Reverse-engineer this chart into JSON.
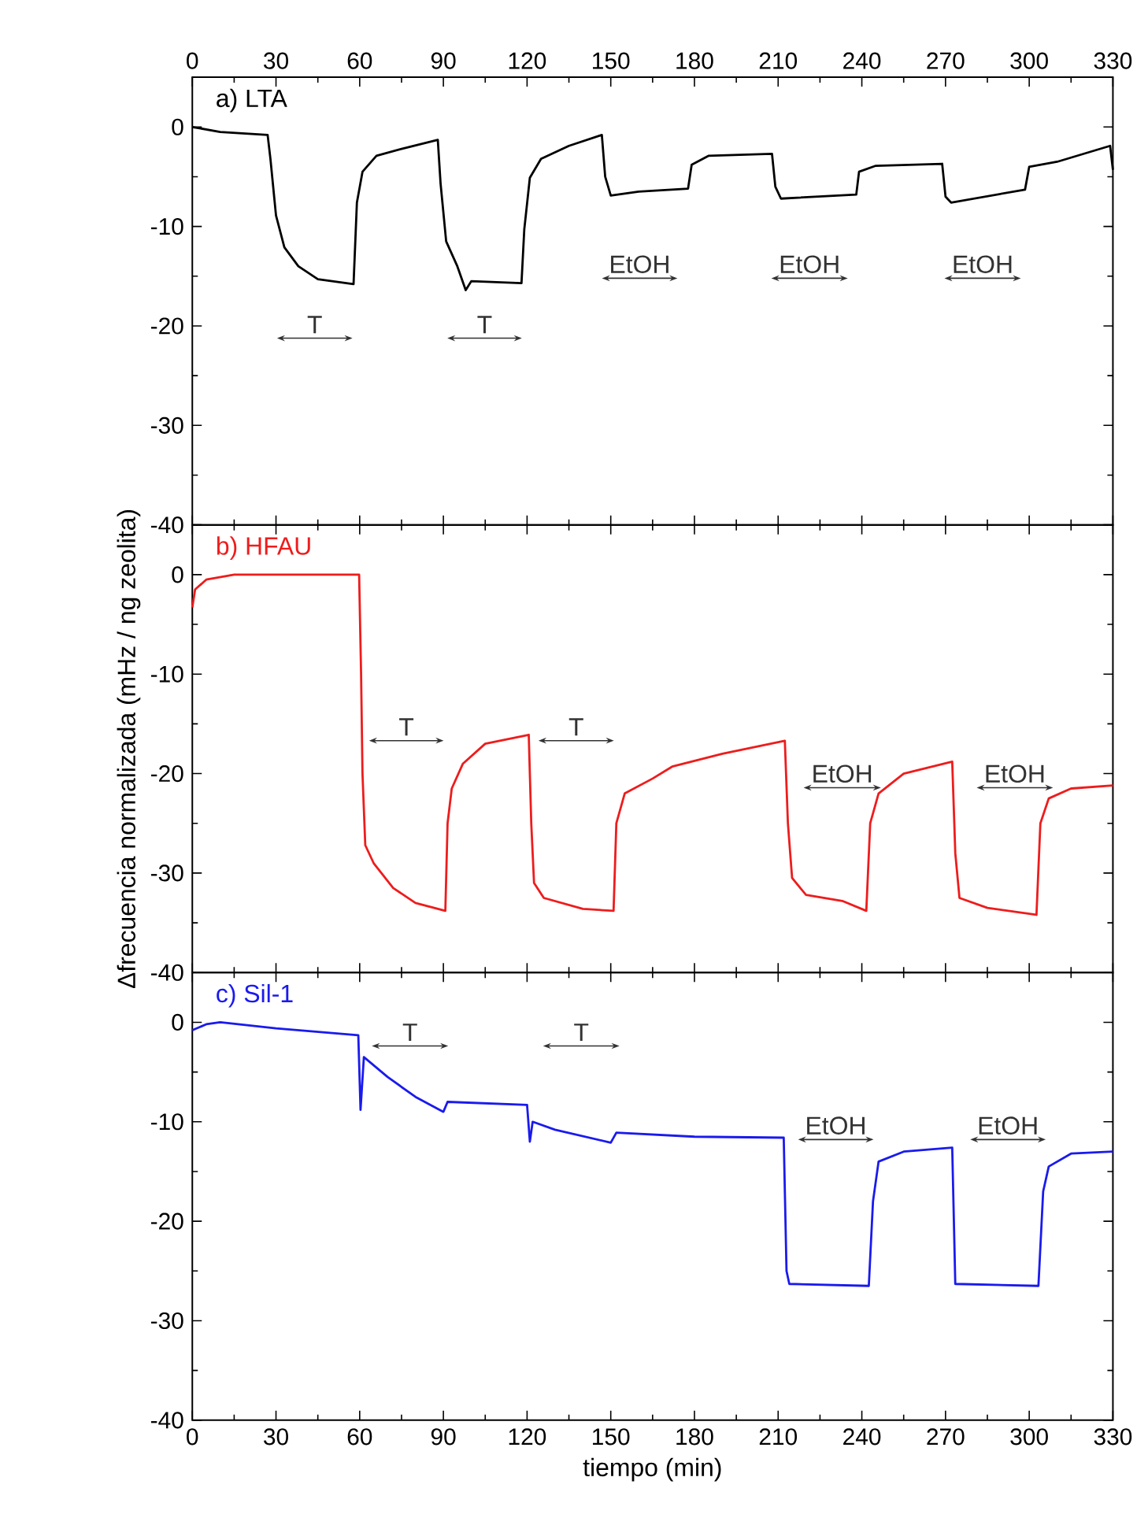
{
  "chart_data": [
    {
      "type": "line",
      "title": "a) LTA",
      "xlim": [
        0,
        330
      ],
      "xticks": [
        0,
        30,
        60,
        90,
        120,
        150,
        180,
        210,
        240,
        270,
        300,
        330
      ],
      "x2lim": [
        0,
        330
      ],
      "x2ticks": [
        0,
        30,
        60,
        90,
        120,
        150,
        180,
        210,
        240,
        270,
        300,
        330
      ],
      "ylim": [
        -40,
        5
      ],
      "yticks": [
        0,
        -10,
        -20,
        -30,
        -40
      ],
      "tick_labels": "y",
      "series": [
        {
          "color": "#000000",
          "x": [
            0,
            10,
            27,
            28,
            30,
            33,
            38,
            45,
            57.8,
            59,
            61,
            66,
            75,
            88,
            89,
            91,
            95,
            98,
            100,
            118,
            119,
            121,
            125,
            135,
            146.8,
            148,
            150,
            160,
            177.7,
            179,
            185,
            207.8,
            209,
            211,
            238,
            239,
            245,
            268.8,
            270,
            272,
            298.5,
            300,
            310,
            329,
            330
          ],
          "values": [
            0,
            -0.5,
            -0.8,
            -3.2,
            -8.9,
            -12.1,
            -14,
            -15.3,
            -15.8,
            -7.6,
            -4.5,
            -2.9,
            -2.2,
            -1.3,
            -5.7,
            -11.5,
            -14,
            -16.4,
            -15.5,
            -15.7,
            -10.3,
            -5.1,
            -3.2,
            -1.9,
            -0.8,
            -5,
            -6.9,
            -6.5,
            -6.2,
            -3.8,
            -2.9,
            -2.7,
            -6,
            -7.2,
            -6.8,
            -4.5,
            -3.9,
            -3.7,
            -7,
            -7.6,
            -6.3,
            -4,
            -3.5,
            -1.9,
            -4.3
          ]
        }
      ],
      "annotations": [
        "T",
        "T",
        "EtOH",
        "EtOH",
        "EtOH"
      ]
    },
    {
      "type": "line",
      "title": "b) HFAU",
      "ylabel": "Δfrecuencia normalizada (mHz / ng zeolita)",
      "xlim": [
        0,
        330
      ],
      "xticks": [
        0,
        30,
        60,
        90,
        120,
        150,
        180,
        210,
        240,
        270,
        300,
        330
      ],
      "ylim": [
        -40,
        5
      ],
      "yticks": [
        0,
        -10,
        -20,
        -30,
        -40
      ],
      "tick_labels": "y",
      "series": [
        {
          "color": "#ee1c1c",
          "x": [
            0,
            1,
            5,
            15,
            59.8,
            60.5,
            61,
            62,
            65,
            72,
            80,
            90.7,
            91.5,
            93,
            97,
            105,
            120.6,
            121.5,
            122.5,
            126,
            140,
            151,
            152,
            155,
            165,
            172,
            190,
            212.4,
            213.5,
            215,
            220,
            233,
            241.6,
            243,
            246,
            255,
            272.4,
            273.5,
            275,
            285,
            302.6,
            304,
            307,
            315,
            330
          ],
          "values": [
            -3.3,
            -1.5,
            -0.5,
            0,
            0,
            -10,
            -20,
            -27.2,
            -29,
            -31.5,
            -33,
            -33.8,
            -25,
            -21.5,
            -19,
            -17,
            -16.1,
            -25,
            -31,
            -32.5,
            -33.6,
            -33.8,
            -25,
            -22,
            -20.5,
            -19.3,
            -18,
            -16.7,
            -25,
            -30.5,
            -32.2,
            -32.8,
            -33.8,
            -25,
            -22,
            -20,
            -18.8,
            -28,
            -32.5,
            -33.5,
            -34.2,
            -25,
            -22.5,
            -21.5,
            -21.2
          ]
        }
      ],
      "annotations": [
        "T",
        "T",
        "EtOH",
        "EtOH"
      ]
    },
    {
      "type": "line",
      "title": "c) Sil-1",
      "xlabel": "tiempo (min)",
      "xlim": [
        0,
        330
      ],
      "xticks": [
        0,
        30,
        60,
        90,
        120,
        150,
        180,
        210,
        240,
        270,
        300,
        330
      ],
      "ylim": [
        -40,
        5
      ],
      "yticks": [
        0,
        -10,
        -20,
        -30,
        -40
      ],
      "series": [
        {
          "color": "#1a1aee",
          "x": [
            0,
            5,
            10,
            30,
            59.5,
            60.3,
            61.5,
            70,
            80,
            90,
            91.5,
            120,
            121,
            122,
            130,
            150,
            152,
            180,
            212,
            213,
            214,
            242.5,
            244,
            246,
            255,
            272.4,
            273.5,
            303.3,
            305,
            307,
            315,
            330
          ],
          "values": [
            -0.8,
            -0.2,
            0,
            -0.6,
            -1.3,
            -8.8,
            -3.5,
            -5.5,
            -7.5,
            -9,
            -8,
            -8.3,
            -12,
            -10,
            -10.8,
            -12.1,
            -11.1,
            -11.5,
            -11.6,
            -25,
            -26.3,
            -26.5,
            -18,
            -14,
            -13,
            -12.6,
            -26.3,
            -26.5,
            -17,
            -14.5,
            -13.2,
            -13
          ]
        }
      ],
      "annotations": [
        "T",
        "T",
        "EtOH",
        "EtOH"
      ]
    }
  ]
}
